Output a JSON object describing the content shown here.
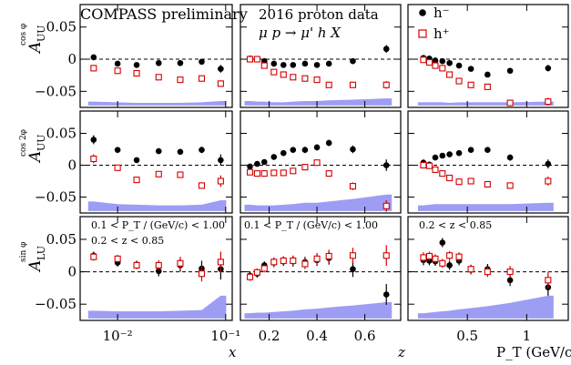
{
  "colors": {
    "h_minus": "#000000",
    "h_plus": "#d40000",
    "band": "#8c8cf2"
  },
  "labels": {
    "title_left": "COMPASS preliminary",
    "title_mid_1": "2016 proton data",
    "title_mid_2": "μ p → μ' h X",
    "legend_minus": "h⁻",
    "legend_plus": "h⁺",
    "row_labels": [
      {
        "main": "A",
        "sub": "UU",
        "sup": "cos φ"
      },
      {
        "main": "A",
        "sub": "UU",
        "sup": "cos 2φ"
      },
      {
        "main": "A",
        "sub": "LU",
        "sup": "sin φ"
      }
    ],
    "cut_x_1": "0.1 < P_T / (GeV/c) < 1.00",
    "cut_x_2": "0.2 < z < 0.85",
    "cut_z": "0.1 < P_T / (GeV/c) < 1.00",
    "cut_pt": "0.2 < z < 0.85",
    "xlabel_x": "x",
    "xlabel_z": "z",
    "xlabel_pt": "P_T (GeV/c)"
  },
  "chart_data": {
    "type": "scatter",
    "ylim": [
      -0.075,
      0.085
    ],
    "yticks": [
      -0.05,
      0,
      0.05
    ],
    "ytick_labels": [
      "−0.05",
      "0",
      "0.05"
    ],
    "columns": [
      {
        "name": "x",
        "scale": "log",
        "xlim": [
          0.0045,
          0.115
        ],
        "xticks": [
          0.01,
          0.1
        ],
        "xtick_labels": [
          "10⁻²",
          "10⁻¹"
        ]
      },
      {
        "name": "z",
        "scale": "linear",
        "xlim": [
          0.08,
          0.75
        ],
        "xticks": [
          0.2,
          0.4,
          0.6
        ],
        "xtick_labels": [
          "0.2",
          "0.4",
          "0.6"
        ]
      },
      {
        "name": "P_T",
        "scale": "linear",
        "xlim": [
          0.0,
          1.35
        ],
        "xticks": [
          0.5,
          1.0
        ],
        "xtick_labels": [
          "0.5",
          "1"
        ]
      }
    ],
    "bins": {
      "x": [
        0.006,
        0.01,
        0.015,
        0.024,
        0.038,
        0.06,
        0.09
      ],
      "z": [
        0.12,
        0.15,
        0.18,
        0.22,
        0.26,
        0.3,
        0.35,
        0.4,
        0.45,
        0.55,
        0.69
      ],
      "P_T": [
        0.13,
        0.18,
        0.23,
        0.29,
        0.35,
        0.43,
        0.53,
        0.67,
        0.86,
        1.18
      ]
    },
    "panels": [
      {
        "row": 0,
        "column": "x",
        "h_minus": {
          "y": [
            0.003,
            -0.007,
            -0.009,
            -0.006,
            -0.006,
            -0.004,
            -0.015
          ],
          "err": [
            0.004,
            0.003,
            0.003,
            0.003,
            0.003,
            0.003,
            0.006
          ]
        },
        "h_plus": {
          "y": [
            -0.014,
            -0.018,
            -0.022,
            -0.028,
            -0.032,
            -0.03,
            -0.038
          ],
          "err": [
            0.003,
            0.003,
            0.003,
            0.003,
            0.003,
            0.003,
            0.005
          ]
        },
        "band": [
          0.006,
          0.005,
          0.004,
          0.004,
          0.004,
          0.005,
          0.007
        ]
      },
      {
        "row": 0,
        "column": "z",
        "h_minus": {
          "y": [
            0.001,
            0.0,
            -0.003,
            -0.007,
            -0.009,
            -0.009,
            -0.007,
            -0.009,
            -0.007,
            -0.003,
            0.016
          ],
          "err": [
            0.003,
            0.003,
            0.003,
            0.003,
            0.003,
            0.003,
            0.003,
            0.003,
            0.003,
            0.004,
            0.006
          ]
        },
        "h_plus": {
          "y": [
            0.0,
            0.0,
            -0.01,
            -0.02,
            -0.024,
            -0.028,
            -0.03,
            -0.032,
            -0.04,
            -0.04,
            -0.04
          ],
          "err": [
            0.003,
            0.003,
            0.003,
            0.003,
            0.003,
            0.003,
            0.003,
            0.003,
            0.003,
            0.004,
            0.006
          ]
        },
        "band": [
          0.007,
          0.006,
          0.006,
          0.005,
          0.005,
          0.006,
          0.007,
          0.007,
          0.008,
          0.009,
          0.011
        ]
      },
      {
        "row": 0,
        "column": "P_T",
        "h_minus": {
          "y": [
            0.002,
            0.001,
            -0.002,
            -0.003,
            -0.006,
            -0.01,
            -0.015,
            -0.024,
            -0.018,
            -0.014
          ],
          "err": [
            0.003,
            0.003,
            0.003,
            0.003,
            0.003,
            0.003,
            0.003,
            0.003,
            0.003,
            0.005
          ]
        },
        "h_plus": {
          "y": [
            -0.001,
            -0.005,
            -0.01,
            -0.014,
            -0.024,
            -0.034,
            -0.04,
            -0.043,
            -0.068,
            -0.066
          ],
          "err": [
            0.003,
            0.003,
            0.003,
            0.003,
            0.003,
            0.003,
            0.003,
            0.003,
            0.004,
            0.006
          ]
        },
        "band": [
          0.005,
          0.005,
          0.005,
          0.005,
          0.004,
          0.005,
          0.005,
          0.005,
          0.005,
          0.006
        ]
      },
      {
        "row": 1,
        "column": "x",
        "h_minus": {
          "y": [
            0.04,
            0.024,
            0.008,
            0.022,
            0.021,
            0.024,
            0.008
          ],
          "err": [
            0.007,
            0.004,
            0.004,
            0.004,
            0.004,
            0.005,
            0.009
          ]
        },
        "h_plus": {
          "y": [
            0.01,
            -0.004,
            -0.023,
            -0.014,
            -0.015,
            -0.032,
            -0.025
          ],
          "err": [
            0.007,
            0.004,
            0.004,
            0.004,
            0.004,
            0.005,
            0.009
          ]
        },
        "band": [
          0.015,
          0.011,
          0.01,
          0.009,
          0.009,
          0.01,
          0.017
        ]
      },
      {
        "row": 1,
        "column": "z",
        "h_minus": {
          "y": [
            -0.002,
            0.002,
            0.005,
            0.013,
            0.019,
            0.024,
            0.024,
            0.028,
            0.035,
            0.025,
            0.0
          ],
          "err": [
            0.003,
            0.003,
            0.003,
            0.004,
            0.004,
            0.004,
            0.005,
            0.005,
            0.005,
            0.006,
            0.009
          ]
        },
        "h_plus": {
          "y": [
            -0.011,
            -0.013,
            -0.013,
            -0.012,
            -0.012,
            -0.009,
            -0.003,
            0.004,
            -0.013,
            -0.033,
            -0.064
          ],
          "err": [
            0.003,
            0.003,
            0.003,
            0.004,
            0.004,
            0.004,
            0.005,
            0.005,
            0.005,
            0.006,
            0.009
          ]
        },
        "band": [
          0.01,
          0.009,
          0.009,
          0.009,
          0.01,
          0.011,
          0.013,
          0.013,
          0.015,
          0.019,
          0.026
        ]
      },
      {
        "row": 1,
        "column": "P_T",
        "h_minus": {
          "y": [
            0.004,
            0.001,
            0.012,
            0.015,
            0.017,
            0.019,
            0.024,
            0.024,
            0.012,
            0.002
          ],
          "err": [
            0.005,
            0.004,
            0.004,
            0.004,
            0.004,
            0.004,
            0.004,
            0.004,
            0.005,
            0.007
          ]
        },
        "h_plus": {
          "y": [
            0.0,
            -0.001,
            -0.007,
            -0.013,
            -0.02,
            -0.026,
            -0.025,
            -0.03,
            -0.032,
            -0.025
          ],
          "err": [
            0.005,
            0.004,
            0.004,
            0.004,
            0.004,
            0.004,
            0.004,
            0.004,
            0.005,
            0.007
          ]
        },
        "band": [
          0.009,
          0.01,
          0.011,
          0.011,
          0.011,
          0.011,
          0.011,
          0.011,
          0.011,
          0.013
        ]
      },
      {
        "row": 2,
        "column": "x",
        "h_minus": {
          "y": [
            0.025,
            0.014,
            0.011,
            0.001,
            0.01,
            0.005,
            0.004
          ],
          "err": [
            0.006,
            0.006,
            0.006,
            0.008,
            0.01,
            0.012,
            0.016
          ]
        },
        "h_plus": {
          "y": [
            0.023,
            0.02,
            0.01,
            0.01,
            0.013,
            -0.003,
            0.015
          ],
          "err": [
            0.006,
            0.006,
            0.006,
            0.008,
            0.01,
            0.012,
            0.016
          ]
        },
        "band": [
          0.012,
          0.011,
          0.011,
          0.011,
          0.012,
          0.013,
          0.035
        ]
      },
      {
        "row": 2,
        "column": "z",
        "h_minus": {
          "y": [
            -0.006,
            -0.003,
            0.01,
            0.014,
            0.016,
            0.016,
            0.015,
            0.018,
            0.021,
            0.004,
            -0.035
          ],
          "err": [
            0.006,
            0.006,
            0.006,
            0.007,
            0.007,
            0.008,
            0.008,
            0.009,
            0.01,
            0.012,
            0.016
          ]
        },
        "h_plus": {
          "y": [
            -0.008,
            -0.001,
            0.005,
            0.015,
            0.017,
            0.017,
            0.012,
            0.02,
            0.024,
            0.025,
            0.025
          ],
          "err": [
            0.006,
            0.006,
            0.006,
            0.007,
            0.007,
            0.008,
            0.008,
            0.009,
            0.01,
            0.012,
            0.016
          ]
        },
        "band": [
          0.008,
          0.009,
          0.009,
          0.01,
          0.011,
          0.012,
          0.014,
          0.015,
          0.017,
          0.02,
          0.025
        ]
      },
      {
        "row": 2,
        "column": "P_T",
        "h_minus": {
          "y": [
            0.018,
            0.017,
            0.016,
            0.045,
            0.01,
            0.017,
            0.003,
            0.004,
            -0.013,
            -0.024
          ],
          "err": [
            0.008,
            0.007,
            0.007,
            0.007,
            0.007,
            0.007,
            0.007,
            0.008,
            0.009,
            0.013
          ]
        },
        "h_plus": {
          "y": [
            0.022,
            0.024,
            0.02,
            0.013,
            0.025,
            0.023,
            0.004,
            0.0,
            0.0,
            -0.013
          ],
          "err": [
            0.008,
            0.007,
            0.007,
            0.007,
            0.007,
            0.007,
            0.007,
            0.008,
            0.009,
            0.013
          ]
        },
        "band": [
          0.008,
          0.009,
          0.01,
          0.011,
          0.012,
          0.014,
          0.016,
          0.019,
          0.024,
          0.035
        ]
      }
    ]
  }
}
